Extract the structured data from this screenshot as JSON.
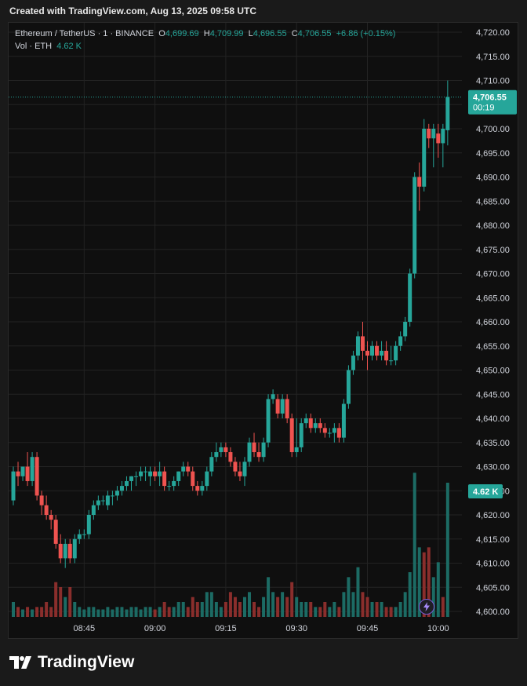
{
  "header": {
    "text": "Created with TradingView.com, Aug 13, 2025 09:58 UTC"
  },
  "legend": {
    "symbol": "Ethereum / TetherUS · 1 · BINANCE",
    "o_label": "O",
    "o_value": "4,699.69",
    "h_label": "H",
    "h_value": "4,709.99",
    "l_label": "L",
    "l_value": "4,696.55",
    "c_label": "C",
    "c_value": "4,706.55",
    "change": "+6.86 (+0.15%)",
    "vol_label": "Vol · ETH",
    "vol_value": "4.62 K"
  },
  "badges": {
    "price": "4,706.55",
    "countdown": "00:19",
    "volume": "4.62 K"
  },
  "colors": {
    "up": "#26a69a",
    "down": "#ef5350",
    "up_volume": "#1c6b64",
    "down_volume": "#8a2e2c",
    "background": "#0f0f0f",
    "grid": "#232323"
  },
  "footer": {
    "brand": "TradingView",
    "logo_icon": "tradingview-logo-icon"
  },
  "icons": {
    "lightning": "lightning-icon"
  },
  "chart_data": {
    "type": "candlestick",
    "title": "Ethereum / TetherUS · 1 · BINANCE",
    "ylim": [
      4600,
      4720
    ],
    "y_ticks": [
      "4,600.00",
      "4,605.00",
      "4,610.00",
      "4,615.00",
      "4,620.00",
      "4,625.00",
      "4,630.00",
      "4,635.00",
      "4,640.00",
      "4,645.00",
      "4,650.00",
      "4,655.00",
      "4,660.00",
      "4,665.00",
      "4,670.00",
      "4,675.00",
      "4,680.00",
      "4,685.00",
      "4,690.00",
      "4,695.00",
      "4,700.00",
      "4,705.00",
      "4,710.00",
      "4,715.00",
      "4,720.00"
    ],
    "y_tick_values": [
      4600,
      4605,
      4610,
      4615,
      4620,
      4625,
      4630,
      4635,
      4640,
      4645,
      4650,
      4655,
      4660,
      4665,
      4670,
      4675,
      4680,
      4685,
      4690,
      4695,
      4700,
      4705,
      4710,
      4715,
      4720
    ],
    "x_ticks": [
      "08:45",
      "09:00",
      "09:15",
      "09:30",
      "09:45",
      "10:00"
    ],
    "x_tick_minutes": [
      45,
      60,
      75,
      90,
      105,
      120
    ],
    "last_price": 4706.55,
    "volume_badge_value": 4.62,
    "volume_max": 30,
    "candles": [
      {
        "m": 30,
        "o": 4623,
        "h": 4630,
        "l": 4622,
        "c": 4629
      },
      {
        "m": 31,
        "o": 4629,
        "h": 4631,
        "l": 4626,
        "c": 4628
      },
      {
        "m": 32,
        "o": 4628,
        "h": 4630,
        "l": 4627,
        "c": 4630
      },
      {
        "m": 33,
        "o": 4630,
        "h": 4633,
        "l": 4626,
        "c": 4627
      },
      {
        "m": 34,
        "o": 4627,
        "h": 4633,
        "l": 4626,
        "c": 4632
      },
      {
        "m": 35,
        "o": 4632,
        "h": 4633,
        "l": 4623,
        "c": 4624
      },
      {
        "m": 36,
        "o": 4624,
        "h": 4625,
        "l": 4620,
        "c": 4622
      },
      {
        "m": 37,
        "o": 4622,
        "h": 4624,
        "l": 4619,
        "c": 4620
      },
      {
        "m": 38,
        "o": 4620,
        "h": 4621,
        "l": 4617,
        "c": 4619
      },
      {
        "m": 39,
        "o": 4619,
        "h": 4620,
        "l": 4613,
        "c": 4614
      },
      {
        "m": 40,
        "o": 4614,
        "h": 4616,
        "l": 4610,
        "c": 4611
      },
      {
        "m": 41,
        "o": 4611,
        "h": 4615,
        "l": 4609,
        "c": 4614
      },
      {
        "m": 42,
        "o": 4614,
        "h": 4615,
        "l": 4610,
        "c": 4611
      },
      {
        "m": 43,
        "o": 4611,
        "h": 4616,
        "l": 4610,
        "c": 4615
      },
      {
        "m": 44,
        "o": 4615,
        "h": 4617,
        "l": 4614,
        "c": 4616
      },
      {
        "m": 45,
        "o": 4616,
        "h": 4617,
        "l": 4615,
        "c": 4616
      },
      {
        "m": 46,
        "o": 4616,
        "h": 4621,
        "l": 4615,
        "c": 4620
      },
      {
        "m": 47,
        "o": 4620,
        "h": 4623,
        "l": 4619,
        "c": 4622
      },
      {
        "m": 48,
        "o": 4622,
        "h": 4624,
        "l": 4621,
        "c": 4623
      },
      {
        "m": 49,
        "o": 4623,
        "h": 4624,
        "l": 4622,
        "c": 4623
      },
      {
        "m": 50,
        "o": 4622,
        "h": 4625,
        "l": 4621,
        "c": 4624
      },
      {
        "m": 51,
        "o": 4624,
        "h": 4625,
        "l": 4622,
        "c": 4624
      },
      {
        "m": 52,
        "o": 4624,
        "h": 4626,
        "l": 4623,
        "c": 4625
      },
      {
        "m": 53,
        "o": 4625,
        "h": 4627,
        "l": 4624,
        "c": 4626
      },
      {
        "m": 54,
        "o": 4626,
        "h": 4628,
        "l": 4625,
        "c": 4627
      },
      {
        "m": 55,
        "o": 4627,
        "h": 4628,
        "l": 4625,
        "c": 4628
      },
      {
        "m": 56,
        "o": 4628,
        "h": 4629,
        "l": 4626,
        "c": 4628
      },
      {
        "m": 57,
        "o": 4628,
        "h": 4630,
        "l": 4627,
        "c": 4629
      },
      {
        "m": 58,
        "o": 4629,
        "h": 4630,
        "l": 4627,
        "c": 4629
      },
      {
        "m": 59,
        "o": 4628,
        "h": 4630,
        "l": 4626,
        "c": 4629
      },
      {
        "m": 60,
        "o": 4629,
        "h": 4630,
        "l": 4627,
        "c": 4628
      },
      {
        "m": 61,
        "o": 4628,
        "h": 4631,
        "l": 4626,
        "c": 4629
      },
      {
        "m": 62,
        "o": 4629,
        "h": 4630,
        "l": 4625,
        "c": 4626
      },
      {
        "m": 63,
        "o": 4626,
        "h": 4627,
        "l": 4625,
        "c": 4626
      },
      {
        "m": 64,
        "o": 4626,
        "h": 4628,
        "l": 4625,
        "c": 4627
      },
      {
        "m": 65,
        "o": 4627,
        "h": 4629,
        "l": 4626,
        "c": 4629
      },
      {
        "m": 66,
        "o": 4629,
        "h": 4631,
        "l": 4628,
        "c": 4630
      },
      {
        "m": 67,
        "o": 4630,
        "h": 4631,
        "l": 4628,
        "c": 4629
      },
      {
        "m": 68,
        "o": 4629,
        "h": 4630,
        "l": 4625,
        "c": 4626
      },
      {
        "m": 69,
        "o": 4626,
        "h": 4627,
        "l": 4624,
        "c": 4625
      },
      {
        "m": 70,
        "o": 4625,
        "h": 4627,
        "l": 4624,
        "c": 4626
      },
      {
        "m": 71,
        "o": 4626,
        "h": 4630,
        "l": 4625,
        "c": 4629
      },
      {
        "m": 72,
        "o": 4629,
        "h": 4633,
        "l": 4628,
        "c": 4632
      },
      {
        "m": 73,
        "o": 4632,
        "h": 4635,
        "l": 4631,
        "c": 4633
      },
      {
        "m": 74,
        "o": 4633,
        "h": 4635,
        "l": 4632,
        "c": 4634
      },
      {
        "m": 75,
        "o": 4634,
        "h": 4635,
        "l": 4632,
        "c": 4633
      },
      {
        "m": 76,
        "o": 4633,
        "h": 4634,
        "l": 4630,
        "c": 4631
      },
      {
        "m": 77,
        "o": 4631,
        "h": 4632,
        "l": 4628,
        "c": 4629
      },
      {
        "m": 78,
        "o": 4629,
        "h": 4631,
        "l": 4627,
        "c": 4628
      },
      {
        "m": 79,
        "o": 4628,
        "h": 4632,
        "l": 4626,
        "c": 4631
      },
      {
        "m": 80,
        "o": 4631,
        "h": 4636,
        "l": 4630,
        "c": 4635
      },
      {
        "m": 81,
        "o": 4635,
        "h": 4637,
        "l": 4632,
        "c": 4633
      },
      {
        "m": 82,
        "o": 4633,
        "h": 4635,
        "l": 4631,
        "c": 4632
      },
      {
        "m": 83,
        "o": 4632,
        "h": 4636,
        "l": 4631,
        "c": 4635
      },
      {
        "m": 84,
        "o": 4635,
        "h": 4645,
        "l": 4634,
        "c": 4644
      },
      {
        "m": 85,
        "o": 4644,
        "h": 4646,
        "l": 4643,
        "c": 4645
      },
      {
        "m": 86,
        "o": 4644,
        "h": 4645,
        "l": 4640,
        "c": 4641
      },
      {
        "m": 87,
        "o": 4641,
        "h": 4645,
        "l": 4640,
        "c": 4644
      },
      {
        "m": 88,
        "o": 4644,
        "h": 4645,
        "l": 4639,
        "c": 4640
      },
      {
        "m": 89,
        "o": 4640,
        "h": 4641,
        "l": 4632,
        "c": 4633
      },
      {
        "m": 90,
        "o": 4633,
        "h": 4640,
        "l": 4632,
        "c": 4634
      },
      {
        "m": 91,
        "o": 4634,
        "h": 4640,
        "l": 4633,
        "c": 4639
      },
      {
        "m": 92,
        "o": 4639,
        "h": 4641,
        "l": 4638,
        "c": 4640
      },
      {
        "m": 93,
        "o": 4640,
        "h": 4641,
        "l": 4637,
        "c": 4638
      },
      {
        "m": 94,
        "o": 4638,
        "h": 4640,
        "l": 4637,
        "c": 4639
      },
      {
        "m": 95,
        "o": 4639,
        "h": 4640,
        "l": 4637,
        "c": 4638
      },
      {
        "m": 96,
        "o": 4638,
        "h": 4639,
        "l": 4636,
        "c": 4637
      },
      {
        "m": 97,
        "o": 4637,
        "h": 4638,
        "l": 4636,
        "c": 4637
      },
      {
        "m": 98,
        "o": 4637,
        "h": 4639,
        "l": 4635,
        "c": 4638
      },
      {
        "m": 99,
        "o": 4638,
        "h": 4639,
        "l": 4635,
        "c": 4636
      },
      {
        "m": 100,
        "o": 4636,
        "h": 4644,
        "l": 4635,
        "c": 4643
      },
      {
        "m": 101,
        "o": 4643,
        "h": 4651,
        "l": 4642,
        "c": 4650
      },
      {
        "m": 102,
        "o": 4650,
        "h": 4654,
        "l": 4649,
        "c": 4653
      },
      {
        "m": 103,
        "o": 4653,
        "h": 4658,
        "l": 4652,
        "c": 4657
      },
      {
        "m": 104,
        "o": 4657,
        "h": 4660,
        "l": 4652,
        "c": 4654
      },
      {
        "m": 105,
        "o": 4654,
        "h": 4656,
        "l": 4650,
        "c": 4653
      },
      {
        "m": 106,
        "o": 4653,
        "h": 4656,
        "l": 4652,
        "c": 4655
      },
      {
        "m": 107,
        "o": 4655,
        "h": 4656,
        "l": 4652,
        "c": 4653
      },
      {
        "m": 108,
        "o": 4653,
        "h": 4656,
        "l": 4652,
        "c": 4654
      },
      {
        "m": 109,
        "o": 4654,
        "h": 4656,
        "l": 4651,
        "c": 4652
      },
      {
        "m": 110,
        "o": 4652,
        "h": 4655,
        "l": 4651,
        "c": 4652
      },
      {
        "m": 111,
        "o": 4652,
        "h": 4656,
        "l": 4651,
        "c": 4655
      },
      {
        "m": 112,
        "o": 4655,
        "h": 4658,
        "l": 4654,
        "c": 4657
      },
      {
        "m": 113,
        "o": 4657,
        "h": 4661,
        "l": 4656,
        "c": 4660
      },
      {
        "m": 114,
        "o": 4660,
        "h": 4671,
        "l": 4659,
        "c": 4670
      },
      {
        "m": 115,
        "o": 4670,
        "h": 4691,
        "l": 4669,
        "c": 4690
      },
      {
        "m": 116,
        "o": 4690,
        "h": 4693,
        "l": 4683,
        "c": 4688
      },
      {
        "m": 117,
        "o": 4688,
        "h": 4702,
        "l": 4687,
        "c": 4700
      },
      {
        "m": 118,
        "o": 4700,
        "h": 4701,
        "l": 4696,
        "c": 4698
      },
      {
        "m": 119,
        "o": 4698,
        "h": 4701,
        "l": 4692,
        "c": 4700
      },
      {
        "m": 120,
        "o": 4699,
        "h": 4701,
        "l": 4694,
        "c": 4697
      },
      {
        "m": 121,
        "o": 4697,
        "h": 4701,
        "l": 4692,
        "c": 4700
      },
      {
        "m": 122,
        "o": 4699.69,
        "h": 4709.99,
        "l": 4696.55,
        "c": 4706.55
      }
    ],
    "volumes": [
      {
        "m": 30,
        "v": 3,
        "d": "up"
      },
      {
        "m": 31,
        "v": 2,
        "d": "down"
      },
      {
        "m": 32,
        "v": 1.5,
        "d": "up"
      },
      {
        "m": 33,
        "v": 2,
        "d": "down"
      },
      {
        "m": 34,
        "v": 1.5,
        "d": "up"
      },
      {
        "m": 35,
        "v": 2,
        "d": "down"
      },
      {
        "m": 36,
        "v": 2,
        "d": "down"
      },
      {
        "m": 37,
        "v": 3,
        "d": "down"
      },
      {
        "m": 38,
        "v": 2,
        "d": "down"
      },
      {
        "m": 39,
        "v": 7,
        "d": "down"
      },
      {
        "m": 40,
        "v": 6,
        "d": "down"
      },
      {
        "m": 41,
        "v": 4,
        "d": "up"
      },
      {
        "m": 42,
        "v": 6,
        "d": "down"
      },
      {
        "m": 43,
        "v": 3,
        "d": "up"
      },
      {
        "m": 44,
        "v": 2,
        "d": "up"
      },
      {
        "m": 45,
        "v": 1.5,
        "d": "up"
      },
      {
        "m": 46,
        "v": 2,
        "d": "up"
      },
      {
        "m": 47,
        "v": 2,
        "d": "up"
      },
      {
        "m": 48,
        "v": 1.5,
        "d": "up"
      },
      {
        "m": 49,
        "v": 1.5,
        "d": "up"
      },
      {
        "m": 50,
        "v": 2,
        "d": "up"
      },
      {
        "m": 51,
        "v": 1.5,
        "d": "up"
      },
      {
        "m": 52,
        "v": 2,
        "d": "up"
      },
      {
        "m": 53,
        "v": 2,
        "d": "up"
      },
      {
        "m": 54,
        "v": 1.5,
        "d": "up"
      },
      {
        "m": 55,
        "v": 2,
        "d": "up"
      },
      {
        "m": 56,
        "v": 2,
        "d": "up"
      },
      {
        "m": 57,
        "v": 1.5,
        "d": "up"
      },
      {
        "m": 58,
        "v": 2,
        "d": "up"
      },
      {
        "m": 59,
        "v": 2,
        "d": "up"
      },
      {
        "m": 60,
        "v": 1.5,
        "d": "down"
      },
      {
        "m": 61,
        "v": 2,
        "d": "up"
      },
      {
        "m": 62,
        "v": 3,
        "d": "down"
      },
      {
        "m": 63,
        "v": 2,
        "d": "down"
      },
      {
        "m": 64,
        "v": 2,
        "d": "up"
      },
      {
        "m": 65,
        "v": 3,
        "d": "up"
      },
      {
        "m": 66,
        "v": 3,
        "d": "up"
      },
      {
        "m": 67,
        "v": 2,
        "d": "down"
      },
      {
        "m": 68,
        "v": 4,
        "d": "down"
      },
      {
        "m": 69,
        "v": 3,
        "d": "down"
      },
      {
        "m": 70,
        "v": 3,
        "d": "up"
      },
      {
        "m": 71,
        "v": 5,
        "d": "up"
      },
      {
        "m": 72,
        "v": 5,
        "d": "up"
      },
      {
        "m": 73,
        "v": 3,
        "d": "up"
      },
      {
        "m": 74,
        "v": 2,
        "d": "up"
      },
      {
        "m": 75,
        "v": 3,
        "d": "down"
      },
      {
        "m": 76,
        "v": 5,
        "d": "down"
      },
      {
        "m": 77,
        "v": 4,
        "d": "down"
      },
      {
        "m": 78,
        "v": 3,
        "d": "down"
      },
      {
        "m": 79,
        "v": 4,
        "d": "up"
      },
      {
        "m": 80,
        "v": 5,
        "d": "up"
      },
      {
        "m": 81,
        "v": 3,
        "d": "down"
      },
      {
        "m": 82,
        "v": 2,
        "d": "down"
      },
      {
        "m": 83,
        "v": 4,
        "d": "up"
      },
      {
        "m": 84,
        "v": 8,
        "d": "up"
      },
      {
        "m": 85,
        "v": 5,
        "d": "up"
      },
      {
        "m": 86,
        "v": 4,
        "d": "down"
      },
      {
        "m": 87,
        "v": 5,
        "d": "up"
      },
      {
        "m": 88,
        "v": 4,
        "d": "down"
      },
      {
        "m": 89,
        "v": 7,
        "d": "down"
      },
      {
        "m": 90,
        "v": 4,
        "d": "up"
      },
      {
        "m": 91,
        "v": 3,
        "d": "up"
      },
      {
        "m": 92,
        "v": 3,
        "d": "up"
      },
      {
        "m": 93,
        "v": 3,
        "d": "down"
      },
      {
        "m": 94,
        "v": 2,
        "d": "up"
      },
      {
        "m": 95,
        "v": 2,
        "d": "down"
      },
      {
        "m": 96,
        "v": 3,
        "d": "down"
      },
      {
        "m": 97,
        "v": 2,
        "d": "up"
      },
      {
        "m": 98,
        "v": 3,
        "d": "up"
      },
      {
        "m": 99,
        "v": 2,
        "d": "down"
      },
      {
        "m": 100,
        "v": 5,
        "d": "up"
      },
      {
        "m": 101,
        "v": 8,
        "d": "up"
      },
      {
        "m": 102,
        "v": 5,
        "d": "up"
      },
      {
        "m": 103,
        "v": 10,
        "d": "up"
      },
      {
        "m": 104,
        "v": 5,
        "d": "down"
      },
      {
        "m": 105,
        "v": 4,
        "d": "down"
      },
      {
        "m": 106,
        "v": 3,
        "d": "up"
      },
      {
        "m": 107,
        "v": 3,
        "d": "down"
      },
      {
        "m": 108,
        "v": 3,
        "d": "up"
      },
      {
        "m": 109,
        "v": 2,
        "d": "down"
      },
      {
        "m": 110,
        "v": 2,
        "d": "down"
      },
      {
        "m": 111,
        "v": 2,
        "d": "up"
      },
      {
        "m": 112,
        "v": 3,
        "d": "up"
      },
      {
        "m": 113,
        "v": 5,
        "d": "up"
      },
      {
        "m": 114,
        "v": 9,
        "d": "up"
      },
      {
        "m": 115,
        "v": 29,
        "d": "up"
      },
      {
        "m": 116,
        "v": 14,
        "d": "up"
      },
      {
        "m": 117,
        "v": 13,
        "d": "down"
      },
      {
        "m": 118,
        "v": 14,
        "d": "down"
      },
      {
        "m": 119,
        "v": 8,
        "d": "up"
      },
      {
        "m": 120,
        "v": 11,
        "d": "up"
      },
      {
        "m": 121,
        "v": 4,
        "d": "down"
      },
      {
        "m": 122,
        "v": 27,
        "d": "up"
      }
    ]
  }
}
